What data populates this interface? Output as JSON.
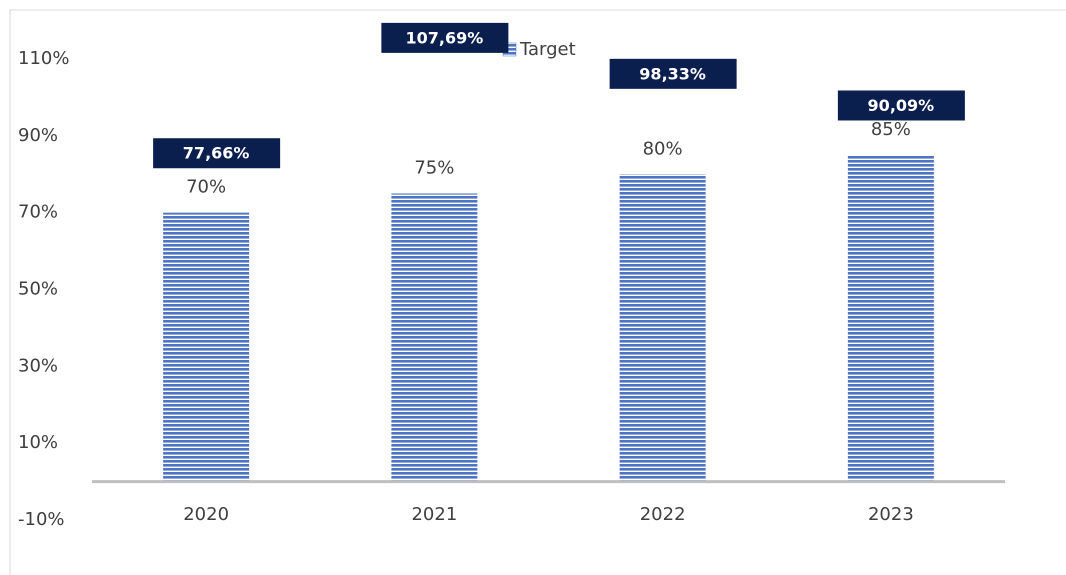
{
  "chart_data": {
    "type": "bar",
    "categories": [
      "2020",
      "2021",
      "2022",
      "2023"
    ],
    "series": [
      {
        "name": "Target",
        "color": "#4f74c4",
        "values": [
          70,
          75,
          80,
          85
        ],
        "value_labels": [
          "70%",
          "75%",
          "80%",
          "85%"
        ]
      },
      {
        "color": "#0b1f4f",
        "values": [
          77.66,
          107.69,
          98.33,
          90.09
        ],
        "value_labels": [
          "77,66%",
          "107,69%",
          "98,33%",
          "90,09%"
        ]
      }
    ],
    "ylim": [
      -10,
      110
    ],
    "yticks": [
      {
        "value": -10,
        "label": "-10%"
      },
      {
        "value": 10,
        "label": "10%"
      },
      {
        "value": 30,
        "label": "30%"
      },
      {
        "value": 50,
        "label": "50%"
      },
      {
        "value": 70,
        "label": "70%"
      },
      {
        "value": 90,
        "label": "90%"
      },
      {
        "value": 110,
        "label": "110%"
      }
    ],
    "grid": false,
    "legend": "top"
  }
}
